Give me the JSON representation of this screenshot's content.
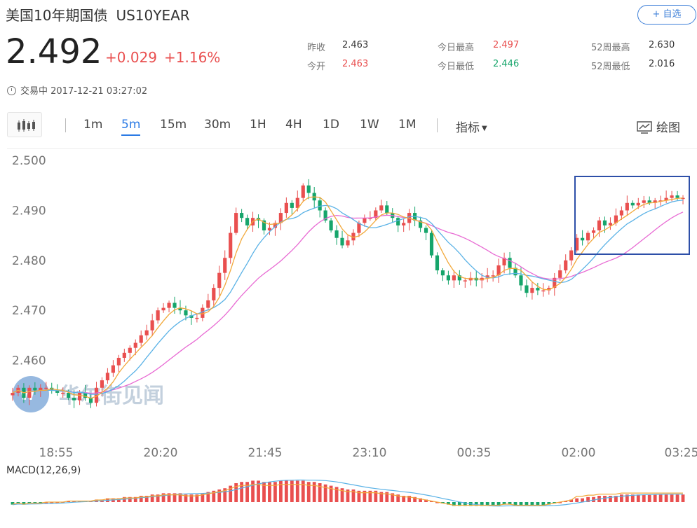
{
  "header": {
    "title_cn": "美国10年期国债",
    "symbol": "US10YEAR",
    "follow_label": "+ 自选"
  },
  "quote": {
    "price": "2.492",
    "change": "+0.029",
    "change_pct": "+1.16%",
    "status": "交易中 2017-12-21 03:27:02"
  },
  "stats": [
    {
      "label": "昨收",
      "value": "2.463",
      "color": "dark"
    },
    {
      "label": "今开",
      "value": "2.463",
      "color": "red"
    },
    {
      "label": "今日最高",
      "value": "2.497",
      "color": "red"
    },
    {
      "label": "今日最低",
      "value": "2.446",
      "color": "green"
    },
    {
      "label": "52周最高",
      "value": "2.630",
      "color": "dark"
    },
    {
      "label": "52周最低",
      "value": "2.016",
      "color": "dark"
    }
  ],
  "toolbar": {
    "periods": [
      "1m",
      "5m",
      "15m",
      "30m",
      "1H",
      "4H",
      "1D",
      "1W",
      "1M"
    ],
    "active_period": "5m",
    "indicator_label": "指标",
    "draw_label": "绘图"
  },
  "chart_data": {
    "type": "candlestick",
    "y_ticks": [
      "2.500",
      "2.490",
      "2.480",
      "2.470",
      "2.460"
    ],
    "ylim": [
      2.4455,
      2.501
    ],
    "x_ticks": [
      "18:55",
      "20:20",
      "21:45",
      "23:10",
      "00:35",
      "02:00",
      "03:25"
    ],
    "colors": {
      "up": "#e94f4f",
      "down": "#16a56b",
      "ma_orange": "#f2a93b",
      "ma_blue": "#5ab2e6",
      "ma_pink": "#e86ad3"
    },
    "closes": [
      2.4535,
      2.4545,
      2.4525,
      2.4545,
      2.454,
      2.4545,
      2.4545,
      2.454,
      2.4535,
      2.4535,
      2.4525,
      2.452,
      2.4535,
      2.4525,
      2.4515,
      2.4545,
      2.456,
      2.4575,
      2.459,
      2.4605,
      2.4615,
      2.4625,
      2.4635,
      2.465,
      2.466,
      2.468,
      2.47,
      2.4705,
      2.4715,
      2.4705,
      2.47,
      2.469,
      2.4685,
      2.4685,
      2.4705,
      2.472,
      2.4745,
      2.4775,
      2.4805,
      2.4855,
      2.4895,
      2.4885,
      2.487,
      2.4885,
      2.488,
      2.486,
      2.4865,
      2.4875,
      2.4895,
      2.4915,
      2.4905,
      2.4925,
      2.495,
      2.4935,
      2.492,
      2.49,
      2.488,
      2.486,
      2.4845,
      2.483,
      2.484,
      2.4855,
      2.4875,
      2.4885,
      2.4885,
      2.49,
      2.491,
      2.4895,
      2.4885,
      2.487,
      2.4875,
      2.4895,
      2.488,
      2.4865,
      2.4855,
      2.481,
      2.478,
      2.477,
      2.476,
      2.477,
      2.476,
      2.476,
      2.4765,
      2.476,
      2.4765,
      2.477,
      2.477,
      2.479,
      2.4805,
      2.4785,
      2.477,
      2.475,
      2.4735,
      2.4745,
      2.474,
      2.474,
      2.4745,
      2.4765,
      2.478,
      2.48,
      2.482,
      2.4845,
      2.484,
      2.4855,
      2.486,
      2.488,
      2.487,
      2.4875,
      2.489,
      2.49,
      2.4915,
      2.491,
      2.4915,
      2.492,
      2.4915,
      2.492,
      2.492,
      2.4925,
      2.493,
      2.4925,
      2.4925
    ],
    "macd": [
      -0.2,
      -0.1,
      -0.2,
      -0.1,
      -0.1,
      -0.1,
      0.0,
      0.0,
      0.0,
      0.0,
      0.1,
      0.1,
      0.1,
      0.1,
      0.1,
      0.2,
      0.2,
      0.3,
      0.3,
      0.3,
      0.4,
      0.4,
      0.4,
      0.5,
      0.5,
      0.6,
      0.6,
      0.7,
      0.7,
      0.7,
      0.7,
      0.6,
      0.6,
      0.6,
      0.7,
      0.8,
      0.9,
      1.0,
      1.1,
      1.3,
      1.5,
      1.6,
      1.6,
      1.7,
      1.7,
      1.6,
      1.6,
      1.6,
      1.7,
      1.7,
      1.7,
      1.7,
      1.7,
      1.6,
      1.6,
      1.5,
      1.4,
      1.3,
      1.2,
      1.1,
      1.0,
      1.0,
      0.9,
      0.9,
      0.9,
      0.9,
      0.8,
      0.8,
      0.7,
      0.6,
      0.5,
      0.5,
      0.4,
      0.3,
      0.2,
      0.1,
      0.0,
      -0.1,
      -0.2,
      -0.3,
      -0.3,
      -0.3,
      -0.3,
      -0.3,
      -0.3,
      -0.3,
      -0.3,
      -0.3,
      -0.2,
      -0.2,
      -0.3,
      -0.3,
      -0.3,
      -0.3,
      -0.3,
      -0.3,
      -0.2,
      -0.1,
      0.0,
      0.1,
      0.2,
      0.3,
      0.3,
      0.4,
      0.4,
      0.5,
      0.5,
      0.5,
      0.5,
      0.6,
      0.6,
      0.6,
      0.6,
      0.6,
      0.6,
      0.6,
      0.6,
      0.6,
      0.6,
      0.6,
      0.6
    ]
  },
  "watermark": "华尔街见闻",
  "macd_label": "MACD(12,26,9)"
}
